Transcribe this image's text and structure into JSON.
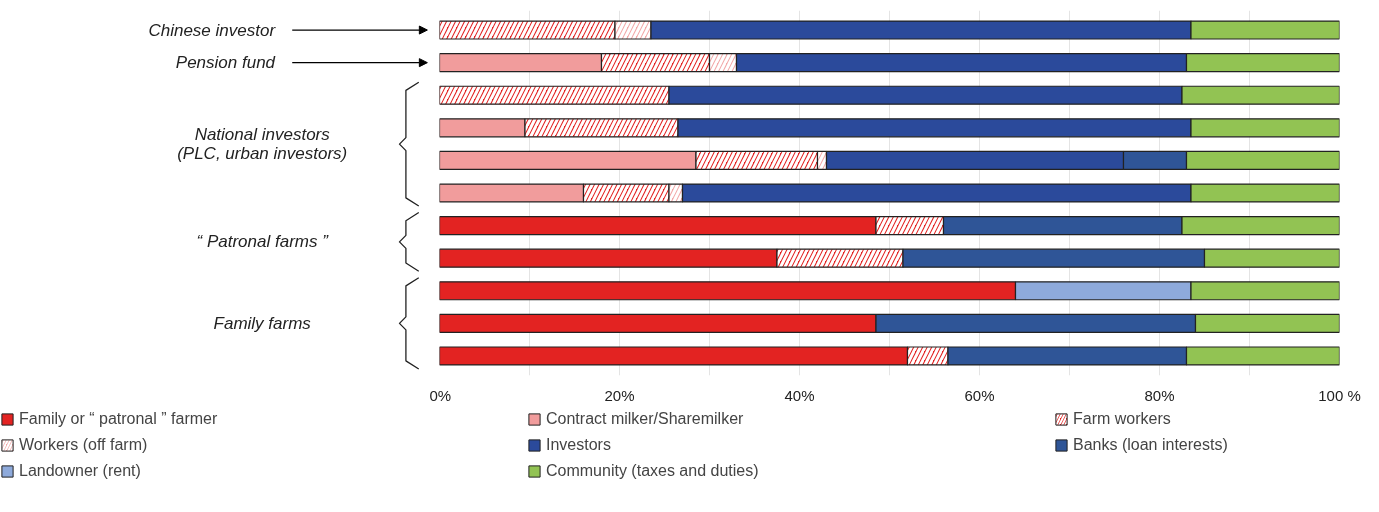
{
  "chart_data": {
    "type": "bar",
    "orientation": "horizontal",
    "stacked": true,
    "categories": [
      "Chinese investor",
      "Pension fund",
      null,
      null,
      null,
      null,
      null,
      null,
      null,
      null,
      null
    ],
    "series": [
      {
        "name": "Family or “ patronal ” farmer",
        "color": "#e32322",
        "values": [
          null,
          null,
          null,
          null,
          null,
          null,
          48.5,
          37.5,
          64,
          48.5,
          52
        ]
      },
      {
        "name": "Contract milker/Sharemilker",
        "color": "#f19c9c",
        "values": [
          null,
          18,
          null,
          9.5,
          28.5,
          16,
          null,
          null,
          null,
          null,
          null
        ]
      },
      {
        "name": "Farm workers",
        "color": "#e32322",
        "values": [
          19.5,
          12,
          25.5,
          17,
          13.5,
          9.5,
          7.5,
          14,
          null,
          null,
          4.5
        ]
      },
      {
        "name": "Workers (off farm)",
        "color": "#f2a8a8",
        "values": [
          4,
          3,
          null,
          null,
          1,
          1.5,
          null,
          null,
          null,
          null,
          null
        ]
      },
      {
        "name": "Investors",
        "color": "#2b4a9b",
        "values": [
          60,
          50,
          57,
          57,
          33,
          56.5,
          null,
          null,
          null,
          null,
          null
        ]
      },
      {
        "name": "Banks (loan interests)",
        "color": "#2f5597",
        "values": [
          null,
          null,
          null,
          null,
          7,
          null,
          26.5,
          33.5,
          null,
          35.5,
          26.5
        ]
      },
      {
        "name": "Landowner (rent)",
        "color": "#8eaadb",
        "values": [
          null,
          null,
          null,
          null,
          null,
          null,
          null,
          null,
          19.5,
          null,
          null
        ]
      },
      {
        "name": "Community (taxes and duties)",
        "color": "#92c353",
        "values": [
          16.5,
          17,
          17.5,
          16.5,
          17,
          16.5,
          17.5,
          15,
          16.5,
          16,
          17
        ]
      }
    ],
    "xlim": [
      0,
      100
    ],
    "xticks": [
      {
        "value": 0,
        "label": "0%"
      },
      {
        "value": 10,
        "label": null
      },
      {
        "value": 20,
        "label": "20%"
      },
      {
        "value": 30,
        "label": null
      },
      {
        "value": 40,
        "label": "40%"
      },
      {
        "value": 50,
        "label": null
      },
      {
        "value": 60,
        "label": "60%"
      },
      {
        "value": 70,
        "label": null
      },
      {
        "value": 80,
        "label": "80%"
      },
      {
        "value": 90,
        "label": null
      },
      {
        "value": 100,
        "label": "100 %"
      }
    ],
    "grid": "x",
    "legend": "bottom",
    "annotations": [
      "National investors\n(PLC, urban investors)",
      "“ Patronal farms ”",
      "Family farms"
    ]
  }
}
